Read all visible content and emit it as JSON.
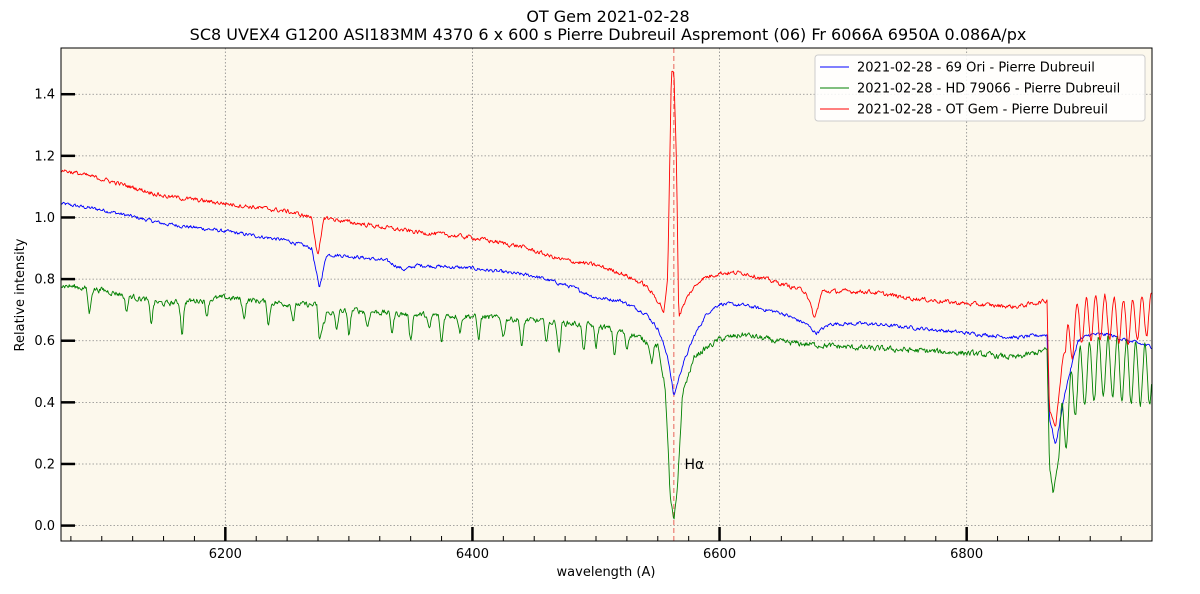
{
  "chart_data": {
    "type": "line",
    "title": "OT Gem 2021-02-28",
    "subtitle": "SC8 UVEX4 G1200 ASI183MM 4370 6 x 600 s Pierre Dubreuil Aspremont (06) Fr 6066A 6950A 0.086A/px",
    "xlabel": "wavelength (A)",
    "ylabel": "Relative intensity",
    "xlim": [
      6067,
      6950
    ],
    "ylim": [
      -0.05,
      1.55
    ],
    "xticks": [
      6200,
      6400,
      6600,
      6800
    ],
    "yticks": [
      0.0,
      0.2,
      0.4,
      0.6,
      0.8,
      1.0,
      1.2,
      1.4
    ],
    "grid": true,
    "background_color": "#fcf8ec",
    "legend_position": "top-right",
    "annotations": [
      {
        "text": "Hα",
        "x": 6570,
        "y": 0.2
      }
    ],
    "reference_line": {
      "x": 6563,
      "color": "#e8635a",
      "style": "dashed"
    },
    "series": [
      {
        "name": "2021-02-28 - 69 Ori - Pierre Dubreuil",
        "color": "#0000ff",
        "points": [
          [
            6067,
            1.045
          ],
          [
            6100,
            1.025
          ],
          [
            6150,
            0.98
          ],
          [
            6200,
            0.955
          ],
          [
            6250,
            0.925
          ],
          [
            6270,
            0.9
          ],
          [
            6276,
            0.77
          ],
          [
            6282,
            0.88
          ],
          [
            6300,
            0.875
          ],
          [
            6330,
            0.86
          ],
          [
            6345,
            0.83
          ],
          [
            6355,
            0.845
          ],
          [
            6400,
            0.835
          ],
          [
            6450,
            0.81
          ],
          [
            6480,
            0.775
          ],
          [
            6500,
            0.74
          ],
          [
            6520,
            0.73
          ],
          [
            6540,
            0.69
          ],
          [
            6550,
            0.64
          ],
          [
            6558,
            0.55
          ],
          [
            6563,
            0.42
          ],
          [
            6570,
            0.52
          ],
          [
            6580,
            0.62
          ],
          [
            6590,
            0.69
          ],
          [
            6600,
            0.72
          ],
          [
            6620,
            0.715
          ],
          [
            6650,
            0.69
          ],
          [
            6670,
            0.655
          ],
          [
            6678,
            0.625
          ],
          [
            6690,
            0.655
          ],
          [
            6720,
            0.655
          ],
          [
            6750,
            0.645
          ],
          [
            6800,
            0.625
          ],
          [
            6840,
            0.61
          ],
          [
            6865,
            0.62
          ],
          [
            6867,
            0.35
          ],
          [
            6872,
            0.26
          ],
          [
            6880,
            0.44
          ],
          [
            6890,
            0.6
          ],
          [
            6900,
            0.62
          ],
          [
            6915,
            0.62
          ],
          [
            6930,
            0.6
          ],
          [
            6950,
            0.58
          ]
        ],
        "noise": 0.005
      },
      {
        "name": "2021-02-28 - HD 79066 - Pierre Dubreuil",
        "color": "#008000",
        "points": [
          [
            6067,
            0.78
          ],
          [
            6100,
            0.765
          ],
          [
            6150,
            0.72
          ],
          [
            6200,
            0.74
          ],
          [
            6250,
            0.72
          ],
          [
            6274,
            0.715
          ],
          [
            6276,
            0.6
          ],
          [
            6282,
            0.69
          ],
          [
            6300,
            0.7
          ],
          [
            6350,
            0.685
          ],
          [
            6400,
            0.68
          ],
          [
            6450,
            0.665
          ],
          [
            6500,
            0.65
          ],
          [
            6530,
            0.62
          ],
          [
            6550,
            0.58
          ],
          [
            6556,
            0.45
          ],
          [
            6560,
            0.1
          ],
          [
            6563,
            0.01
          ],
          [
            6566,
            0.12
          ],
          [
            6570,
            0.43
          ],
          [
            6580,
            0.55
          ],
          [
            6600,
            0.605
          ],
          [
            6620,
            0.62
          ],
          [
            6650,
            0.595
          ],
          [
            6700,
            0.58
          ],
          [
            6750,
            0.57
          ],
          [
            6800,
            0.56
          ],
          [
            6840,
            0.545
          ],
          [
            6865,
            0.57
          ],
          [
            6867,
            0.2
          ],
          [
            6870,
            0.1
          ],
          [
            6878,
            0.32
          ],
          [
            6890,
            0.48
          ],
          [
            6910,
            0.52
          ],
          [
            6930,
            0.5
          ],
          [
            6950,
            0.49
          ]
        ],
        "noise": 0.008,
        "absorption_lines": [
          [
            6090,
            0.08
          ],
          [
            6120,
            0.05
          ],
          [
            6140,
            0.07
          ],
          [
            6165,
            0.1
          ],
          [
            6185,
            0.05
          ],
          [
            6215,
            0.06
          ],
          [
            6235,
            0.07
          ],
          [
            6255,
            0.05
          ],
          [
            6290,
            0.06
          ],
          [
            6300,
            0.08
          ],
          [
            6315,
            0.05
          ],
          [
            6335,
            0.06
          ],
          [
            6350,
            0.08
          ],
          [
            6365,
            0.05
          ],
          [
            6375,
            0.09
          ],
          [
            6390,
            0.05
          ],
          [
            6405,
            0.07
          ],
          [
            6425,
            0.06
          ],
          [
            6440,
            0.09
          ],
          [
            6460,
            0.06
          ],
          [
            6470,
            0.1
          ],
          [
            6490,
            0.09
          ],
          [
            6500,
            0.07
          ],
          [
            6515,
            0.08
          ],
          [
            6525,
            0.05
          ],
          [
            6545,
            0.06
          ]
        ],
        "oscillation": {
          "start": 6875,
          "end": 6950,
          "amplitude": 0.1
        }
      },
      {
        "name": "2021-02-28 - OT Gem - Pierre Dubreuil",
        "color": "#ff0000",
        "points": [
          [
            6067,
            1.155
          ],
          [
            6100,
            1.125
          ],
          [
            6150,
            1.07
          ],
          [
            6200,
            1.045
          ],
          [
            6250,
            1.02
          ],
          [
            6270,
            1.0
          ],
          [
            6275,
            0.87
          ],
          [
            6280,
            1.0
          ],
          [
            6300,
            0.985
          ],
          [
            6350,
            0.955
          ],
          [
            6400,
            0.935
          ],
          [
            6440,
            0.905
          ],
          [
            6470,
            0.865
          ],
          [
            6500,
            0.845
          ],
          [
            6520,
            0.82
          ],
          [
            6540,
            0.78
          ],
          [
            6552,
            0.72
          ],
          [
            6555,
            0.69
          ],
          [
            6558,
            0.8
          ],
          [
            6561,
            1.47
          ],
          [
            6563,
            1.48
          ],
          [
            6565,
            1.2
          ],
          [
            6567,
            0.68
          ],
          [
            6575,
            0.75
          ],
          [
            6585,
            0.8
          ],
          [
            6600,
            0.82
          ],
          [
            6620,
            0.82
          ],
          [
            6650,
            0.785
          ],
          [
            6670,
            0.76
          ],
          [
            6677,
            0.67
          ],
          [
            6683,
            0.76
          ],
          [
            6720,
            0.76
          ],
          [
            6750,
            0.74
          ],
          [
            6800,
            0.72
          ],
          [
            6840,
            0.71
          ],
          [
            6865,
            0.73
          ],
          [
            6867,
            0.38
          ],
          [
            6872,
            0.32
          ],
          [
            6878,
            0.55
          ],
          [
            6890,
            0.66
          ],
          [
            6910,
            0.68
          ],
          [
            6930,
            0.66
          ],
          [
            6950,
            0.69
          ]
        ],
        "noise": 0.006,
        "oscillation": {
          "start": 6880,
          "end": 6950,
          "amplitude": 0.07
        }
      }
    ]
  }
}
